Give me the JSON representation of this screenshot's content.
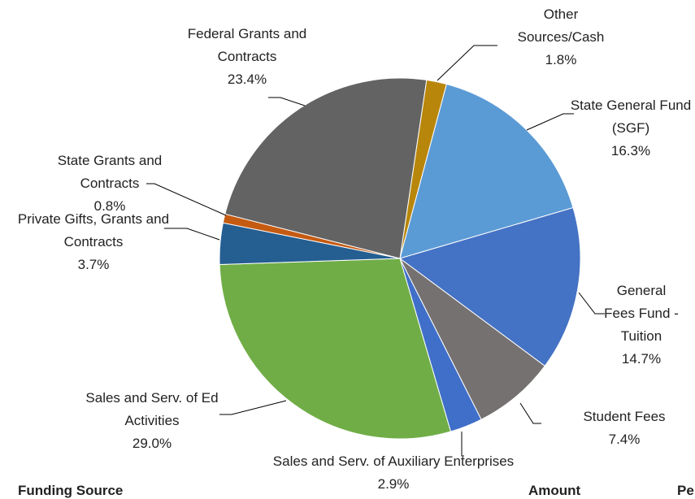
{
  "chart_data": {
    "type": "pie",
    "categories": [
      "Other Sources/Cash",
      "State General Fund (SGF)",
      "General Fees Fund - Tuition",
      "Student Fees",
      "Sales and Serv. of Auxiliary Enterprises",
      "Sales and Serv. of Ed Activities",
      "Private Gifts, Grants and Contracts",
      "State Grants and Contracts",
      "Federal Grants and Contracts"
    ],
    "values": [
      1.8,
      16.3,
      14.7,
      7.4,
      2.9,
      29.0,
      3.7,
      0.8,
      23.4
    ],
    "value_labels": [
      "1.8%",
      "16.3%",
      "14.7%",
      "7.4%",
      "2.9%",
      "29.0%",
      "3.7%",
      "0.8%",
      "23.4%"
    ],
    "colors": [
      "#b8860b",
      "#5b9bd5",
      "#4472c4",
      "#767171",
      "#3f6fc9",
      "#70ad47",
      "#255e91",
      "#c55a11",
      "#636363"
    ]
  },
  "table": {
    "headers": [
      "Funding Source",
      "Amount",
      "Pe"
    ]
  }
}
